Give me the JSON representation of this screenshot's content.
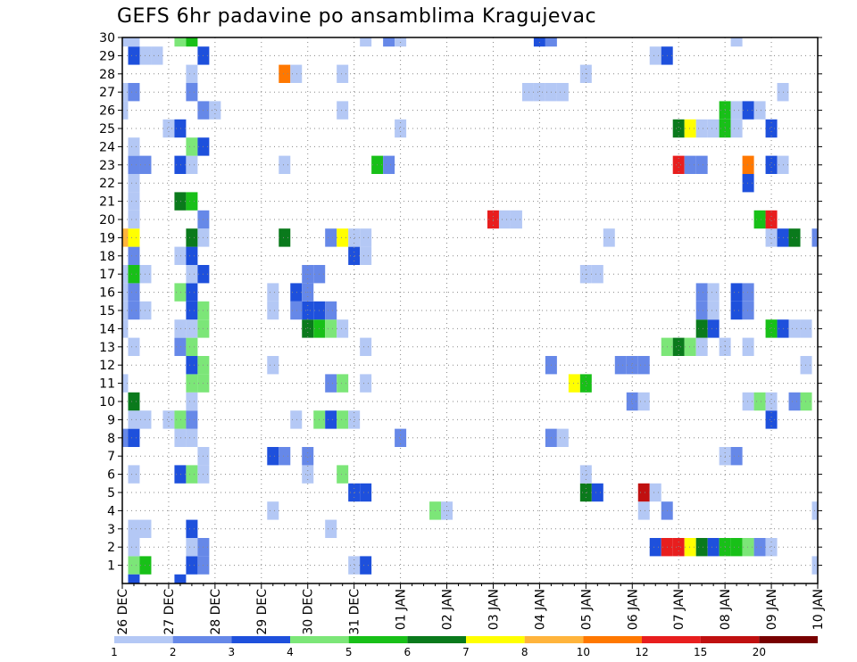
{
  "chart_data": {
    "type": "heatmap",
    "title": "GEFS 6hr padavine po ansamblima Kragujevac",
    "xlabel": "",
    "ylabel": "",
    "x_ticks": [
      "26 DEC",
      "27 DEC",
      "28 DEC",
      "29 DEC",
      "30 DEC",
      "31 DEC",
      "01 JAN",
      "02 JAN",
      "03 JAN",
      "04 JAN",
      "05 JAN",
      "06 JAN",
      "07 JAN",
      "08 JAN",
      "09 JAN",
      "10 JAN"
    ],
    "y_ticks": [
      1,
      2,
      3,
      4,
      5,
      6,
      7,
      8,
      9,
      10,
      11,
      12,
      13,
      14,
      15,
      16,
      17,
      18,
      19,
      20,
      21,
      22,
      23,
      24,
      25,
      26,
      27,
      28,
      29,
      30
    ],
    "ylim": [
      0,
      30
    ],
    "x_step_hours": 6,
    "x_steps": 61,
    "grid": true,
    "legend": {
      "placement": "bottom",
      "boundaries": [
        1,
        2,
        3,
        4,
        5,
        6,
        7,
        8,
        10,
        12,
        15,
        20
      ],
      "colors": [
        "#b4c8f5",
        "#6688e8",
        "#1e50dc",
        "#7ce678",
        "#18c018",
        "#0a7a1c",
        "#ffff00",
        "#ffb43c",
        "#ff7800",
        "#e81e1e",
        "#c01010",
        "#780000"
      ]
    },
    "series": [
      {
        "member": 1,
        "cells": [
          [
            1,
            4
          ],
          [
            2,
            5
          ],
          [
            6,
            3
          ],
          [
            7,
            2
          ],
          [
            20,
            1
          ],
          [
            21,
            3
          ],
          [
            60,
            1
          ]
        ]
      },
      {
        "member": 2,
        "cells": [
          [
            1,
            1
          ],
          [
            6,
            1
          ],
          [
            7,
            2
          ],
          [
            46,
            3
          ],
          [
            47,
            10
          ],
          [
            48,
            10
          ],
          [
            49,
            7
          ],
          [
            50,
            6
          ],
          [
            51,
            3
          ],
          [
            52,
            5
          ],
          [
            53,
            5
          ],
          [
            54,
            4
          ],
          [
            55,
            2
          ],
          [
            56,
            1
          ]
        ]
      },
      {
        "member": 3,
        "cells": [
          [
            1,
            1
          ],
          [
            2,
            1
          ],
          [
            6,
            3
          ],
          [
            18,
            1
          ]
        ]
      },
      {
        "member": 4,
        "cells": [
          [
            13,
            1
          ],
          [
            27,
            4
          ],
          [
            28,
            1
          ],
          [
            45,
            1
          ],
          [
            47,
            2
          ],
          [
            60,
            1
          ]
        ]
      },
      {
        "member": 5,
        "cells": [
          [
            45,
            11
          ],
          [
            20,
            3
          ],
          [
            21,
            3
          ],
          [
            40,
            6
          ],
          [
            41,
            3
          ],
          [
            46,
            1
          ]
        ]
      },
      {
        "member": 6,
        "cells": [
          [
            1,
            1
          ],
          [
            5,
            3
          ],
          [
            6,
            4
          ],
          [
            7,
            1
          ],
          [
            16,
            1
          ],
          [
            19,
            4
          ],
          [
            40,
            1
          ]
        ]
      },
      {
        "member": 7,
        "cells": [
          [
            7,
            1
          ],
          [
            13,
            3
          ],
          [
            14,
            2
          ],
          [
            16,
            2
          ],
          [
            52,
            1
          ],
          [
            53,
            2
          ]
        ]
      },
      {
        "member": 8,
        "cells": [
          [
            0,
            2
          ],
          [
            1,
            3
          ],
          [
            5,
            1
          ],
          [
            6,
            1
          ],
          [
            24,
            2
          ],
          [
            37,
            2
          ],
          [
            38,
            1
          ]
        ]
      },
      {
        "member": 9,
        "cells": [
          [
            1,
            1
          ],
          [
            2,
            1
          ],
          [
            4,
            1
          ],
          [
            5,
            4
          ],
          [
            6,
            2
          ],
          [
            15,
            1
          ],
          [
            17,
            4
          ],
          [
            18,
            3
          ],
          [
            19,
            4
          ],
          [
            20,
            1
          ],
          [
            56,
            3
          ]
        ]
      },
      {
        "member": 10,
        "cells": [
          [
            1,
            6
          ],
          [
            6,
            1
          ],
          [
            44,
            2
          ],
          [
            45,
            1
          ],
          [
            54,
            1
          ],
          [
            55,
            4
          ],
          [
            56,
            1
          ],
          [
            58,
            2
          ],
          [
            59,
            4
          ]
        ]
      },
      {
        "member": 11,
        "cells": [
          [
            0,
            1
          ],
          [
            6,
            4
          ],
          [
            7,
            4
          ],
          [
            18,
            2
          ],
          [
            19,
            4
          ],
          [
            21,
            1
          ],
          [
            39,
            7
          ],
          [
            40,
            5
          ]
        ]
      },
      {
        "member": 12,
        "cells": [
          [
            6,
            3
          ],
          [
            7,
            4
          ],
          [
            13,
            1
          ],
          [
            37,
            2
          ],
          [
            43,
            2
          ],
          [
            44,
            2
          ],
          [
            45,
            2
          ],
          [
            59,
            1
          ]
        ]
      },
      {
        "member": 13,
        "cells": [
          [
            1,
            1
          ],
          [
            5,
            2
          ],
          [
            6,
            4
          ],
          [
            21,
            1
          ],
          [
            47,
            4
          ],
          [
            48,
            6
          ],
          [
            49,
            4
          ],
          [
            50,
            1
          ],
          [
            52,
            1
          ],
          [
            54,
            1
          ]
        ]
      },
      {
        "member": 14,
        "cells": [
          [
            0,
            1
          ],
          [
            5,
            1
          ],
          [
            6,
            1
          ],
          [
            7,
            4
          ],
          [
            16,
            6
          ],
          [
            17,
            5
          ],
          [
            18,
            4
          ],
          [
            19,
            1
          ],
          [
            50,
            6
          ],
          [
            51,
            3
          ],
          [
            56,
            5
          ],
          [
            57,
            3
          ],
          [
            58,
            1
          ],
          [
            59,
            1
          ]
        ]
      },
      {
        "member": 15,
        "cells": [
          [
            0,
            1
          ],
          [
            1,
            2
          ],
          [
            2,
            1
          ],
          [
            6,
            3
          ],
          [
            7,
            4
          ],
          [
            13,
            1
          ],
          [
            15,
            2
          ],
          [
            16,
            3
          ],
          [
            17,
            3
          ],
          [
            18,
            2
          ],
          [
            50,
            2
          ],
          [
            51,
            1
          ],
          [
            53,
            3
          ],
          [
            54,
            2
          ]
        ]
      },
      {
        "member": 16,
        "cells": [
          [
            0,
            1
          ],
          [
            1,
            2
          ],
          [
            5,
            4
          ],
          [
            6,
            3
          ],
          [
            13,
            1
          ],
          [
            15,
            3
          ],
          [
            16,
            2
          ],
          [
            50,
            2
          ],
          [
            51,
            1
          ],
          [
            53,
            3
          ],
          [
            54,
            2
          ]
        ]
      },
      {
        "member": 17,
        "cells": [
          [
            0,
            1
          ],
          [
            1,
            5
          ],
          [
            2,
            1
          ],
          [
            6,
            1
          ],
          [
            7,
            3
          ],
          [
            16,
            2
          ],
          [
            17,
            2
          ],
          [
            40,
            1
          ],
          [
            41,
            1
          ]
        ]
      },
      {
        "member": 18,
        "cells": [
          [
            1,
            2
          ],
          [
            5,
            1
          ],
          [
            6,
            3
          ],
          [
            20,
            3
          ],
          [
            21,
            1
          ]
        ]
      },
      {
        "member": 19,
        "cells": [
          [
            0,
            8
          ],
          [
            1,
            7
          ],
          [
            6,
            6
          ],
          [
            7,
            1
          ],
          [
            14,
            6
          ],
          [
            18,
            2
          ],
          [
            19,
            7
          ],
          [
            20,
            1
          ],
          [
            21,
            1
          ],
          [
            42,
            1
          ],
          [
            56,
            1
          ],
          [
            57,
            3
          ],
          [
            58,
            6
          ],
          [
            60,
            2
          ]
        ]
      },
      {
        "member": 20,
        "cells": [
          [
            1,
            1
          ],
          [
            7,
            2
          ],
          [
            32,
            10
          ],
          [
            33,
            1
          ],
          [
            34,
            1
          ],
          [
            55,
            5
          ],
          [
            56,
            10
          ]
        ]
      },
      {
        "member": 21,
        "cells": [
          [
            1,
            1
          ],
          [
            5,
            6
          ],
          [
            6,
            5
          ]
        ]
      },
      {
        "member": 22,
        "cells": [
          [
            1,
            1
          ],
          [
            54,
            3
          ]
        ]
      },
      {
        "member": 23,
        "cells": [
          [
            1,
            2
          ],
          [
            2,
            2
          ],
          [
            5,
            3
          ],
          [
            6,
            1
          ],
          [
            14,
            1
          ],
          [
            22,
            5
          ],
          [
            23,
            2
          ],
          [
            48,
            10
          ],
          [
            49,
            2
          ],
          [
            50,
            2
          ],
          [
            54,
            9
          ],
          [
            56,
            3
          ],
          [
            57,
            1
          ]
        ]
      },
      {
        "member": 24,
        "cells": [
          [
            1,
            1
          ],
          [
            6,
            4
          ],
          [
            7,
            3
          ]
        ]
      },
      {
        "member": 25,
        "cells": [
          [
            4,
            1
          ],
          [
            5,
            3
          ],
          [
            24,
            1
          ],
          [
            48,
            6
          ],
          [
            49,
            7
          ],
          [
            50,
            1
          ],
          [
            51,
            1
          ],
          [
            52,
            5
          ],
          [
            53,
            1
          ],
          [
            56,
            3
          ]
        ]
      },
      {
        "member": 26,
        "cells": [
          [
            0,
            1
          ],
          [
            7,
            2
          ],
          [
            8,
            1
          ],
          [
            19,
            1
          ],
          [
            52,
            5
          ],
          [
            53,
            1
          ],
          [
            54,
            3
          ],
          [
            55,
            1
          ]
        ]
      },
      {
        "member": 27,
        "cells": [
          [
            0,
            1
          ],
          [
            1,
            2
          ],
          [
            6,
            2
          ],
          [
            35,
            1
          ],
          [
            36,
            1
          ],
          [
            37,
            1
          ],
          [
            38,
            1
          ],
          [
            57,
            1
          ]
        ]
      },
      {
        "member": 28,
        "cells": [
          [
            6,
            1
          ],
          [
            14,
            9
          ],
          [
            15,
            1
          ],
          [
            19,
            1
          ],
          [
            40,
            1
          ]
        ]
      },
      {
        "member": 29,
        "cells": [
          [
            1,
            3
          ],
          [
            2,
            1
          ],
          [
            3,
            1
          ],
          [
            7,
            3
          ],
          [
            46,
            1
          ],
          [
            47,
            3
          ]
        ]
      },
      {
        "member": 30,
        "cells": [
          [
            0,
            1
          ],
          [
            1,
            1
          ],
          [
            5,
            4
          ],
          [
            6,
            5
          ],
          [
            21,
            1
          ],
          [
            23,
            2
          ],
          [
            24,
            1
          ],
          [
            36,
            3
          ],
          [
            37,
            2
          ],
          [
            53,
            1
          ]
        ]
      },
      {
        "member": 0,
        "cells": [
          [
            1,
            3
          ],
          [
            5,
            3
          ]
        ]
      }
    ]
  }
}
